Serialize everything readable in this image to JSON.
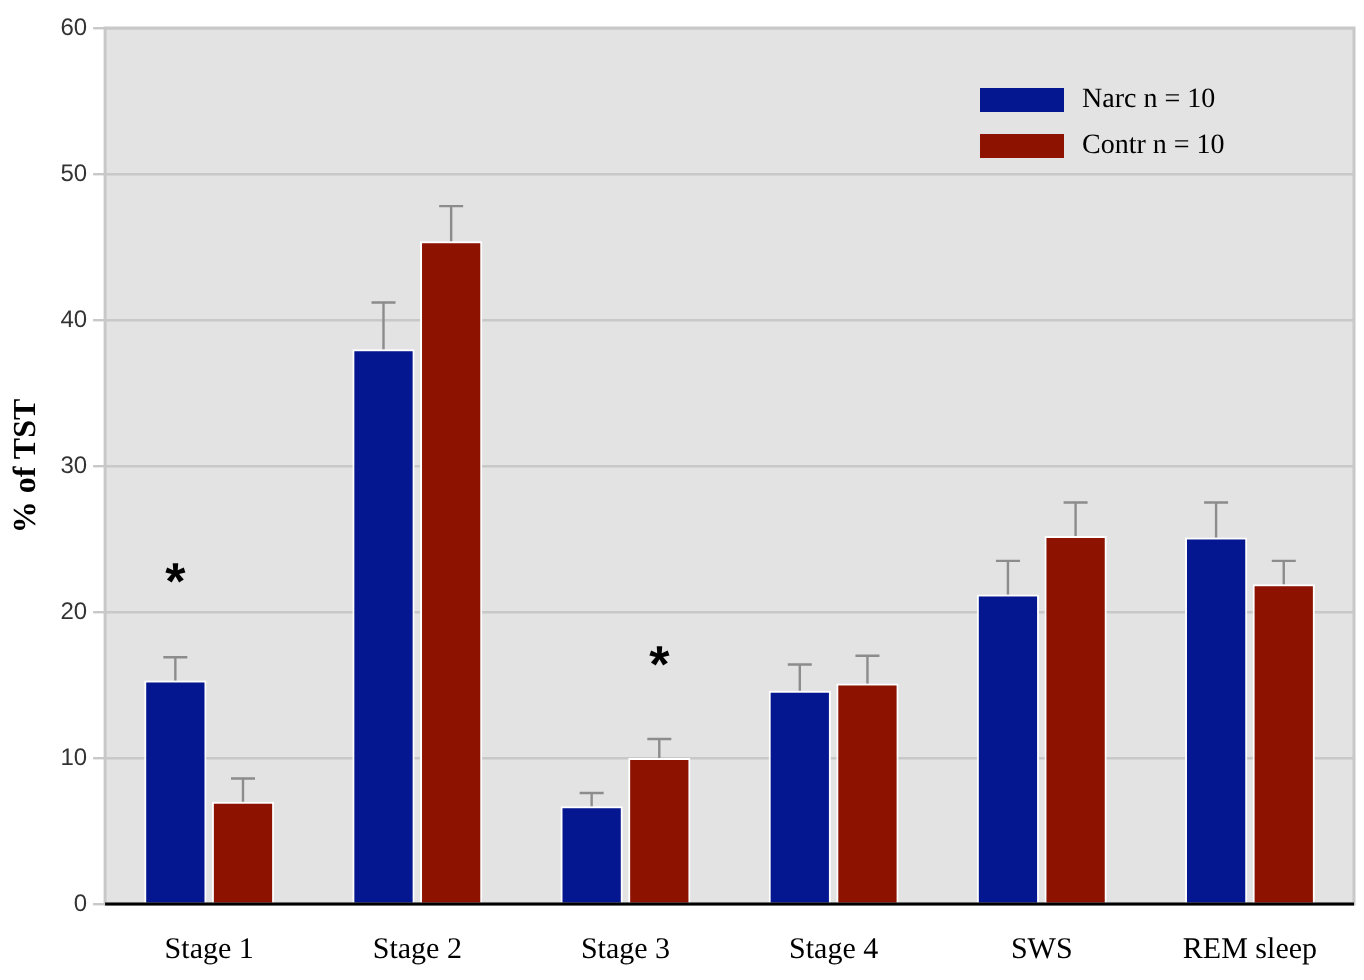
{
  "chart_data": {
    "type": "bar",
    "ylabel": "% of TST",
    "categories": [
      "Stage 1",
      "Stage 2",
      "Stage 3",
      "Stage 4",
      "SWS",
      "REM sleep"
    ],
    "series": [
      {
        "name": "Narc n = 10",
        "color": "#041690",
        "values": [
          15.3,
          38.0,
          6.7,
          14.6,
          21.2,
          25.1
        ],
        "errors": [
          [
            15.3,
            16.9
          ],
          [
            38.0,
            41.2
          ],
          [
            6.7,
            7.6
          ],
          [
            14.6,
            16.4
          ],
          [
            21.2,
            23.5
          ],
          [
            25.1,
            27.5
          ]
        ]
      },
      {
        "name": "Contr n = 10",
        "color": "#8e1200",
        "values": [
          7.0,
          45.4,
          10.0,
          15.1,
          25.2,
          21.9
        ],
        "errors": [
          [
            7.0,
            8.6
          ],
          [
            45.4,
            47.8
          ],
          [
            10.0,
            11.3
          ],
          [
            15.1,
            17.0
          ],
          [
            25.2,
            27.5
          ],
          [
            21.9,
            23.5
          ]
        ]
      }
    ],
    "ylim": [
      0,
      60
    ],
    "yticks": [
      0,
      10,
      20,
      30,
      40,
      50,
      60
    ],
    "grid": "y",
    "legend": "top right",
    "annotations": [
      "*",
      "*"
    ]
  }
}
